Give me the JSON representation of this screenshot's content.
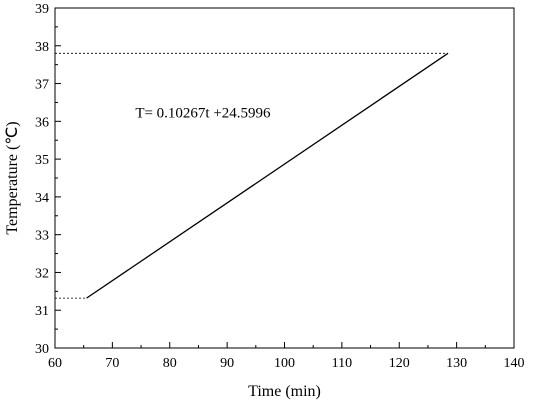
{
  "chart_data": {
    "type": "line",
    "title": "",
    "xlabel": "Time (min)",
    "ylabel": "Temperature (℃)",
    "xlim": [
      60,
      140
    ],
    "ylim": [
      30,
      39
    ],
    "xticks": [
      60,
      70,
      80,
      90,
      100,
      110,
      120,
      130,
      140
    ],
    "yticks": [
      30,
      31,
      32,
      33,
      34,
      35,
      36,
      37,
      38,
      39
    ],
    "x_tick_labels": [
      "60",
      "70",
      "80",
      "90",
      "100",
      "110",
      "120",
      "130",
      "140"
    ],
    "y_tick_labels": [
      "30",
      "31",
      "32",
      "33",
      "34",
      "35",
      "36",
      "37",
      "38",
      "39"
    ],
    "grid": false,
    "legend": "none",
    "series": [
      {
        "x": [
          65.5,
          128.5
        ],
        "y": [
          31.32,
          37.8
        ],
        "style": "solid"
      }
    ],
    "reference_lines": [
      {
        "x": [
          60,
          65.5
        ],
        "y": [
          31.32,
          31.32
        ],
        "style": "dotted"
      },
      {
        "x": [
          60,
          128.5
        ],
        "y": [
          37.8,
          37.8
        ],
        "style": "dotted"
      }
    ],
    "annotations": [
      {
        "text": "T= 0.10267t +24.5996",
        "x": 74,
        "y": 36.1
      }
    ]
  }
}
